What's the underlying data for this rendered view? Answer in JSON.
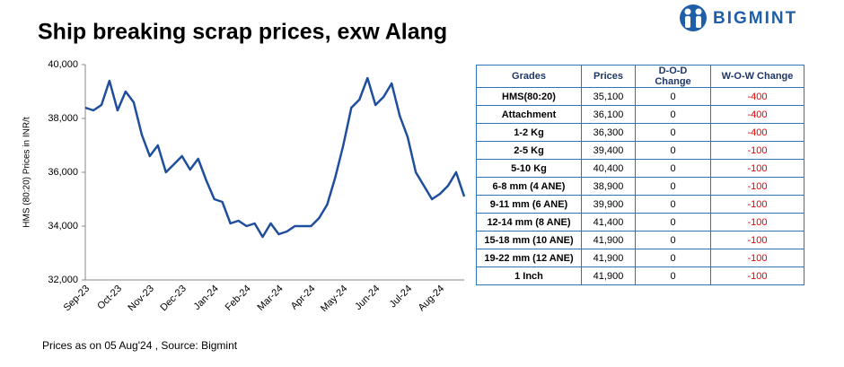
{
  "chart_data": {
    "type": "line",
    "title": "Ship breaking scrap prices, exw Alang",
    "y_label": "HMS (80:20) Prices in INR/t",
    "categories": [
      "Sep-23",
      null,
      null,
      null,
      "Oct-23",
      null,
      null,
      null,
      "Nov-23",
      null,
      null,
      null,
      "Dec-23",
      null,
      null,
      null,
      "Jan-24",
      null,
      null,
      null,
      "Feb-24",
      null,
      null,
      null,
      "Mar-24",
      null,
      null,
      null,
      "Apr-24",
      null,
      null,
      null,
      "May-24",
      null,
      null,
      null,
      "Jun-24",
      null,
      null,
      null,
      "Jul-24",
      null,
      null,
      null,
      "Aug-24",
      null,
      null,
      null
    ],
    "series": [
      {
        "name": "HMS (80:20)",
        "color": "#1f4e9c",
        "values": [
          38400,
          38300,
          38500,
          39400,
          38300,
          39000,
          38600,
          37400,
          36600,
          37000,
          36000,
          36300,
          36600,
          36100,
          36500,
          35700,
          35000,
          34900,
          34100,
          34200,
          34000,
          34100,
          33600,
          34100,
          33700,
          33800,
          34000,
          34000,
          34000,
          34300,
          34800,
          35800,
          37000,
          38400,
          38700,
          39500,
          38500,
          38800,
          39300,
          38100,
          37300,
          36000,
          35500,
          35000,
          35200,
          35500,
          36000,
          35100
        ]
      }
    ],
    "ylim": [
      32000,
      40000
    ],
    "yticks": [
      {
        "value": 32000,
        "label": "32,000"
      },
      {
        "value": 34000,
        "label": "34,000"
      },
      {
        "value": 36000,
        "label": "36,000"
      },
      {
        "value": 38000,
        "label": "38,000"
      },
      {
        "value": 40000,
        "label": "40,000"
      }
    ]
  },
  "table": {
    "header": [
      "Grades",
      "Prices",
      "D-O-D Change",
      "W-O-W Change"
    ],
    "rows": [
      [
        "HMS(80:20)",
        "35,100",
        "0",
        "-400"
      ],
      [
        "Attachment",
        "36,100",
        "0",
        "-400"
      ],
      [
        "1-2 Kg",
        "36,300",
        "0",
        "-400"
      ],
      [
        "2-5 Kg",
        "39,400",
        "0",
        "-100"
      ],
      [
        "5-10 Kg",
        "40,400",
        "0",
        "-100"
      ],
      [
        "6-8 mm (4 ANE)",
        "38,900",
        "0",
        "-100"
      ],
      [
        "9-11 mm (6 ANE)",
        "39,900",
        "0",
        "-100"
      ],
      [
        "12-14 mm (8 ANE)",
        "41,400",
        "0",
        "-100"
      ],
      [
        "15-18 mm (10 ANE)",
        "41,900",
        "0",
        "-100"
      ],
      [
        "19-22 mm (12 ANE)",
        "41,900",
        "0",
        "-100"
      ],
      [
        "1 Inch",
        "41,900",
        "0",
        "-100"
      ]
    ]
  },
  "footnote": "Prices as on 05 Aug'24 , Source: Bigmint",
  "logo": "BIGMINT"
}
